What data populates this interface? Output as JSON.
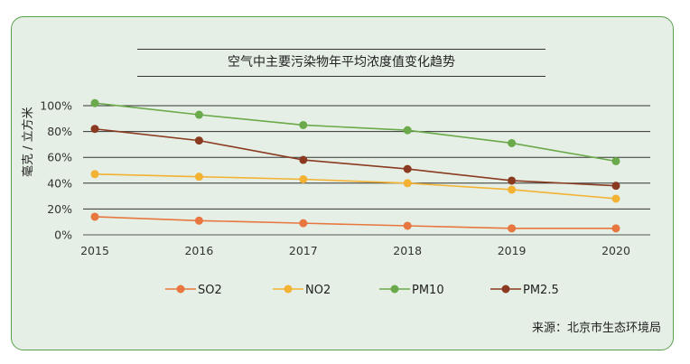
{
  "chart_data": {
    "type": "line",
    "title": "空气中主要污染物年平均浓度值变化趋势",
    "ylabel": "毫克 / 立方米",
    "xlabel": "",
    "categories": [
      "2015",
      "2016",
      "2017",
      "2018",
      "2019",
      "2020"
    ],
    "y_ticks": [
      "0%",
      "20%",
      "40%",
      "60%",
      "80%",
      "100%"
    ],
    "ylim": [
      0,
      100
    ],
    "grid": "horizontal",
    "legend_position": "bottom",
    "series": [
      {
        "name": "SO2",
        "color": "#e8763f",
        "values": [
          14,
          11,
          9,
          7,
          5,
          5
        ]
      },
      {
        "name": "NO2",
        "color": "#f3b233",
        "values": [
          47,
          45,
          43,
          40,
          35,
          28
        ]
      },
      {
        "name": "PM10",
        "color": "#6aaa4a",
        "values": [
          102,
          93,
          85,
          81,
          71,
          57
        ]
      },
      {
        "name": "PM2.5",
        "color": "#8b3a22",
        "values": [
          82,
          73,
          58,
          51,
          42,
          38
        ]
      }
    ]
  },
  "source": "来源：北京市生态环境局"
}
